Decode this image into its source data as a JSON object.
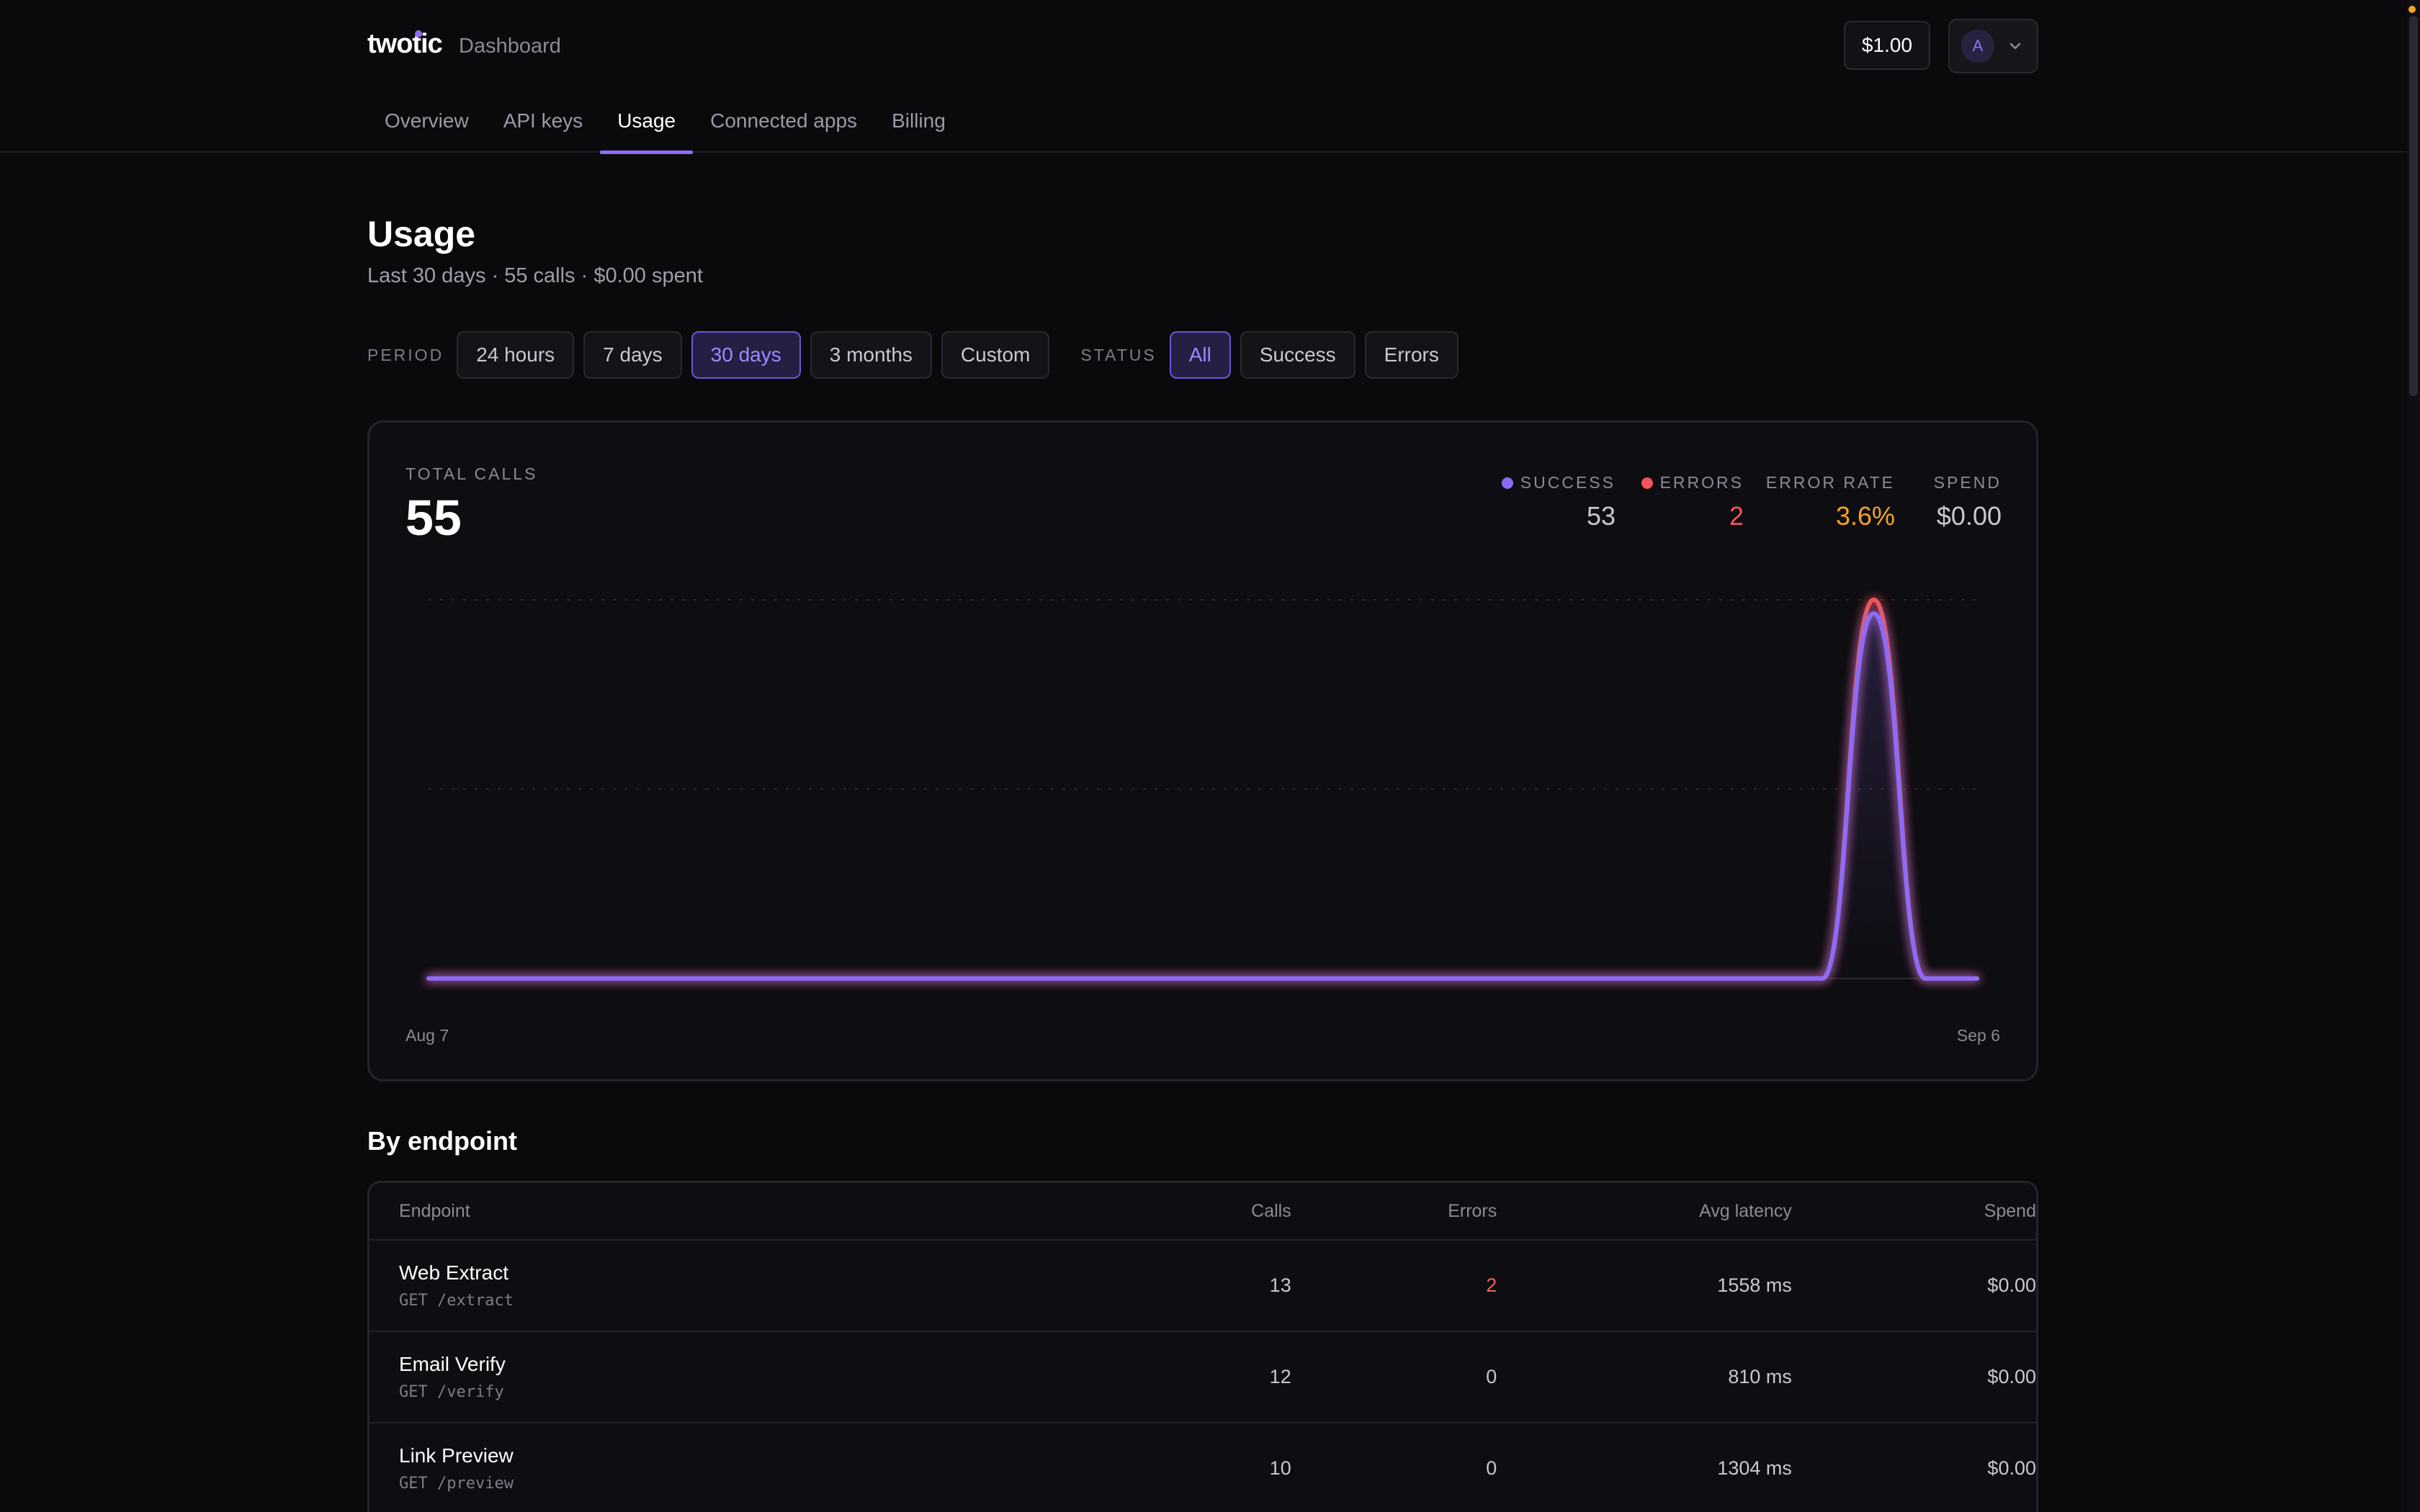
{
  "header": {
    "logo": "twotic",
    "section": "Dashboard",
    "balance": "$1.00",
    "avatar_initial": "A"
  },
  "tabs": [
    {
      "label": "Overview",
      "active": false
    },
    {
      "label": "API keys",
      "active": false
    },
    {
      "label": "Usage",
      "active": true
    },
    {
      "label": "Connected apps",
      "active": false
    },
    {
      "label": "Billing",
      "active": false
    }
  ],
  "page": {
    "title": "Usage",
    "subtitle": "Last 30 days · 55 calls · $0.00 spent"
  },
  "filters": {
    "period_label": "PERIOD",
    "periods": [
      "24 hours",
      "7 days",
      "30 days",
      "3 months",
      "Custom"
    ],
    "period_selected": "30 days",
    "status_label": "STATUS",
    "statuses": [
      "All",
      "Success",
      "Errors"
    ],
    "status_selected": "All"
  },
  "summary": {
    "total_label": "TOTAL CALLS",
    "total_value": "55",
    "success_label": "SUCCESS",
    "success_value": "53",
    "errors_label": "ERRORS",
    "errors_value": "2",
    "error_rate_label": "ERROR RATE",
    "error_rate_value": "3.6%",
    "spend_label": "SPEND",
    "spend_value": "$0.00"
  },
  "colors": {
    "accent": "#8b6cf6",
    "success": "#8b6cf6",
    "error": "#f0545c",
    "warning": "#f5a524",
    "background": "#0a090c"
  },
  "chart_data": {
    "type": "line",
    "x_start_label": "Aug 7",
    "x_end_label": "Sep 6",
    "x_days": 31,
    "series": [
      {
        "name": "SUCCESS",
        "color": "#8b6cf6",
        "values": [
          0,
          0,
          0,
          0,
          0,
          0,
          0,
          0,
          0,
          0,
          0,
          0,
          0,
          0,
          0,
          0,
          0,
          0,
          0,
          0,
          0,
          0,
          0,
          0,
          0,
          0,
          0,
          0,
          53,
          0,
          0
        ]
      },
      {
        "name": "ERRORS",
        "color": "#f0545c",
        "values": [
          0,
          0,
          0,
          0,
          0,
          0,
          0,
          0,
          0,
          0,
          0,
          0,
          0,
          0,
          0,
          0,
          0,
          0,
          0,
          0,
          0,
          0,
          0,
          0,
          0,
          0,
          0,
          0,
          2,
          0,
          0
        ]
      }
    ],
    "stacked": true,
    "ylim": [
      0,
      55
    ],
    "grid": true
  },
  "endpoints": {
    "title": "By endpoint",
    "columns": [
      "Endpoint",
      "Calls",
      "Errors",
      "Avg latency",
      "Spend"
    ],
    "rows": [
      {
        "name": "Web Extract",
        "path": "GET /extract",
        "calls": "13",
        "errors": "2",
        "latency": "1558 ms",
        "spend": "$0.00"
      },
      {
        "name": "Email Verify",
        "path": "GET /verify",
        "calls": "12",
        "errors": "0",
        "latency": "810 ms",
        "spend": "$0.00"
      },
      {
        "name": "Link Preview",
        "path": "GET /preview",
        "calls": "10",
        "errors": "0",
        "latency": "1304 ms",
        "spend": "$0.00"
      }
    ]
  }
}
